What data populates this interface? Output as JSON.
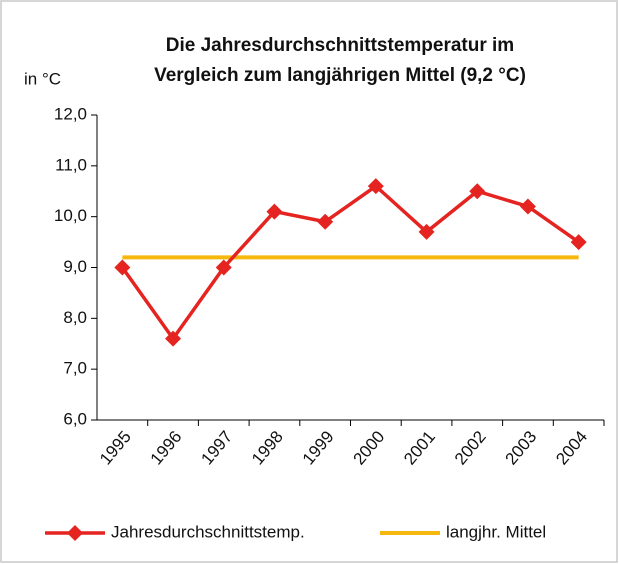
{
  "chart_data": {
    "type": "line",
    "title": [
      "Die Jahresdurchschnittstemperatur im",
      "Vergleich zum langjährigen Mittel (9,2 °C)"
    ],
    "y_label": "in °C",
    "categories": [
      "1995",
      "1996",
      "1997",
      "1998",
      "1999",
      "2000",
      "2001",
      "2002",
      "2003",
      "2004"
    ],
    "series": [
      {
        "name": "Jahresdurchschnittstemp.",
        "color": "#e52421",
        "marker": "diamond",
        "values": [
          9.0,
          7.6,
          9.0,
          10.1,
          9.9,
          10.6,
          9.7,
          10.5,
          10.2,
          9.5
        ]
      },
      {
        "name": "langjhr. Mittel",
        "color": "#f6b80f",
        "marker": "none",
        "values": [
          9.2,
          9.2,
          9.2,
          9.2,
          9.2,
          9.2,
          9.2,
          9.2,
          9.2,
          9.2
        ]
      }
    ],
    "ylim": [
      6,
      12
    ],
    "yticks": [
      {
        "value": 6,
        "label": "6,0"
      },
      {
        "value": 7,
        "label": "7,0"
      },
      {
        "value": 8,
        "label": "8,0"
      },
      {
        "value": 9,
        "label": "9,0"
      },
      {
        "value": 10,
        "label": "10,0"
      },
      {
        "value": 11,
        "label": "11,0"
      },
      {
        "value": 12,
        "label": "12,0"
      }
    ],
    "grid": false,
    "legend": "bottom"
  }
}
